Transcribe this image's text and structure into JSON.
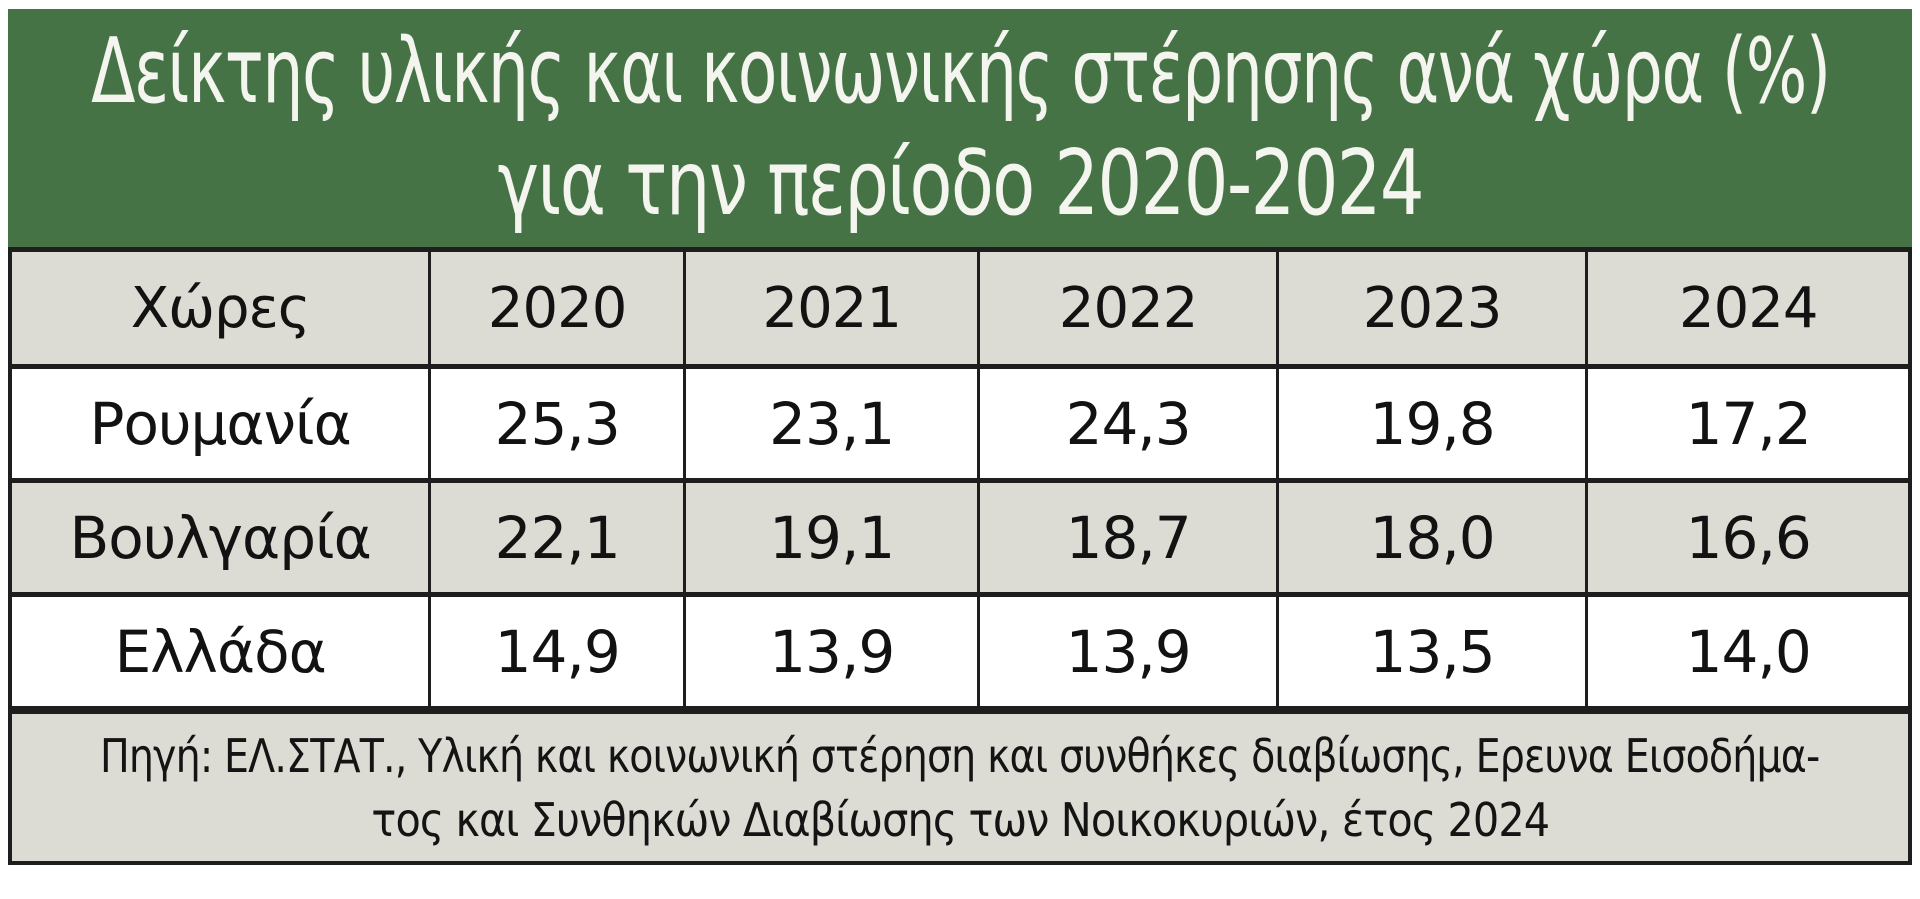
{
  "title": {
    "line1": "Δείκτης υλικής και κοινωνικής στέρησης ανά χώρα (%)",
    "line2": "για την περίοδο 2020-2024"
  },
  "table": {
    "header": [
      "Χώρες",
      "2020",
      "2021",
      "2022",
      "2023",
      "2024"
    ],
    "rows": [
      {
        "label": "Ρουμανία",
        "values": [
          "25,3",
          "23,1",
          "24,3",
          "19,8",
          "17,2"
        ]
      },
      {
        "label": "Βουλγαρία",
        "values": [
          "22,1",
          "19,1",
          "18,7",
          "18,0",
          "16,6"
        ]
      },
      {
        "label": "Ελλάδα",
        "values": [
          "14,9",
          "13,9",
          "13,9",
          "13,5",
          "14,0"
        ]
      }
    ]
  },
  "source": {
    "line1": "Πηγή: ΕΛ.ΣΤΑΤ., Υλική και κοινωνική στέρηση και συνθήκες διαβίωσης, Ερευνα Εισοδήμα-",
    "line2": "τος και Συνθηκών Διαβίωσης των Νοικοκυριών, έτος 2024"
  },
  "colors": {
    "title_background": "#467345",
    "title_text": "#f3f5ee",
    "shaded_cell": "#dcdcd4",
    "white_cell": "#ffffff",
    "border": "#1e1e1e",
    "body_text": "#121212"
  },
  "chart_data": {
    "type": "table",
    "title": "Δείκτης υλικής και κοινωνικής στέρησης ανά χώρα (%) για την περίοδο 2020-2024",
    "unit": "%",
    "categories": [
      "2020",
      "2021",
      "2022",
      "2023",
      "2024"
    ],
    "row_header_label": "Χώρες",
    "series": [
      {
        "name": "Ρουμανία",
        "values": [
          25.3,
          23.1,
          24.3,
          19.8,
          17.2
        ]
      },
      {
        "name": "Βουλγαρία",
        "values": [
          22.1,
          19.1,
          18.7,
          18.0,
          16.6
        ]
      },
      {
        "name": "Ελλάδα",
        "values": [
          14.9,
          13.9,
          13.9,
          13.5,
          14.0
        ]
      }
    ],
    "source": "Πηγή: ΕΛ.ΣΤΑΤ., Υλική και κοινωνική στέρηση και συνθήκες διαβίωσης, Ερευνα Εισοδήματος και Συνθηκών Διαβίωσης των Νοικοκυριών, έτος 2024"
  }
}
